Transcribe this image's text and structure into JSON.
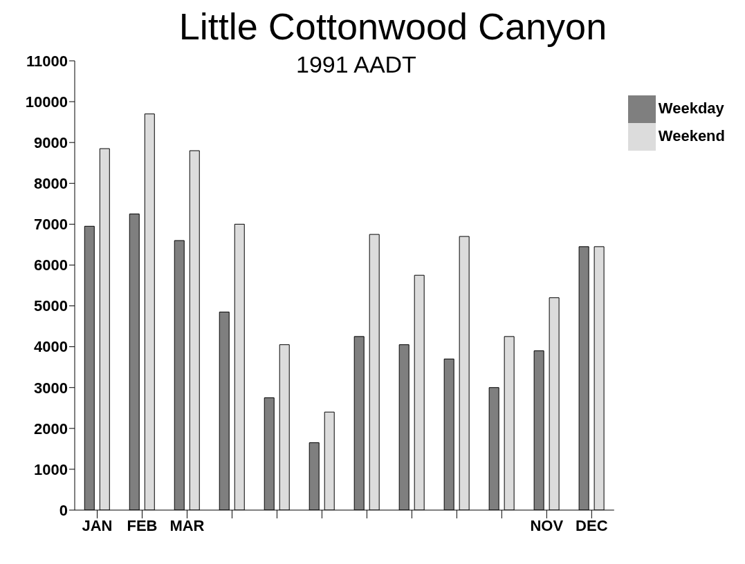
{
  "chart_data": {
    "type": "bar",
    "title": "Little Cottonwood Canyon",
    "subtitle": "1991 AADT",
    "categories": [
      "JAN",
      "FEB",
      "MAR",
      null,
      null,
      null,
      null,
      null,
      null,
      null,
      "NOV",
      "DEC"
    ],
    "series": [
      {
        "name": "Weekday",
        "color": "#7f7f7f",
        "values": [
          6950,
          7250,
          6600,
          4850,
          2750,
          1650,
          4250,
          4050,
          3700,
          3000,
          3900,
          6450
        ]
      },
      {
        "name": "Weekend",
        "color": "#dcdcdc",
        "values": [
          8850,
          9700,
          8800,
          7000,
          4050,
          2400,
          6750,
          5750,
          6700,
          4250,
          5200,
          6450
        ]
      }
    ],
    "ylim": [
      0,
      11000
    ],
    "yticks": [
      0,
      1000,
      2000,
      3000,
      4000,
      5000,
      6000,
      7000,
      8000,
      9000,
      10000,
      11000
    ],
    "grid": false,
    "legend": "right"
  }
}
